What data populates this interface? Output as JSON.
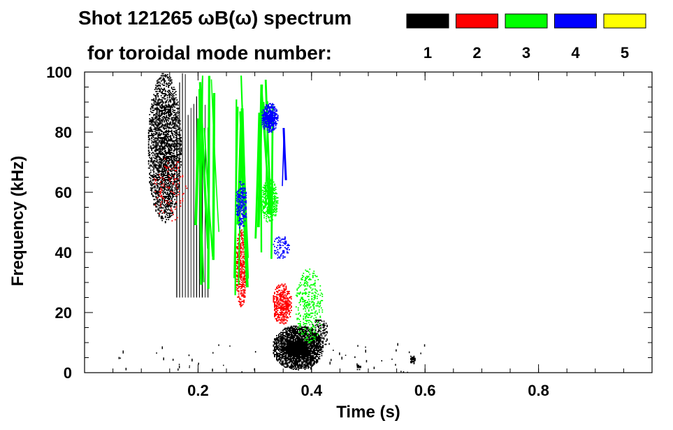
{
  "chart_data": {
    "type": "heatmap",
    "title_line1": "Shot 121265 ωB(ω) spectrum",
    "title_line2": "for toroidal mode number:",
    "xlabel": "Time (s)",
    "ylabel": "Frequency (kHz)",
    "xlim": [
      0.0,
      1.0
    ],
    "ylim": [
      0,
      100
    ],
    "x_ticks": [
      0.2,
      0.4,
      0.6,
      0.8
    ],
    "x_tick_labels": [
      "0.2",
      "0.4",
      "0.6",
      "0.8"
    ],
    "y_ticks": [
      0,
      20,
      40,
      60,
      80,
      100
    ],
    "y_tick_labels": [
      "0",
      "20",
      "40",
      "60",
      "80",
      "100"
    ],
    "legend": [
      {
        "mode": "1",
        "color": "#000000"
      },
      {
        "mode": "2",
        "color": "#ff0000"
      },
      {
        "mode": "3",
        "color": "#00ff00"
      },
      {
        "mode": "4",
        "color": "#0000ff"
      },
      {
        "mode": "5",
        "color": "#ffff00"
      }
    ],
    "features": [
      {
        "mode": "1",
        "kind": "blob",
        "t": [
          0.11,
          0.17
        ],
        "f": [
          50,
          100
        ],
        "density": 0.55
      },
      {
        "mode": "1",
        "kind": "blob",
        "t": [
          0.33,
          0.42
        ],
        "f": [
          1,
          16
        ],
        "density": 0.9
      },
      {
        "mode": "1",
        "kind": "blob",
        "t": [
          0.395,
          0.43
        ],
        "f": [
          8,
          18
        ],
        "density": 0.4
      },
      {
        "mode": "1",
        "kind": "lines",
        "t": [
          0.16,
          0.22
        ],
        "f": [
          25,
          100
        ],
        "count": 12
      },
      {
        "mode": "1",
        "kind": "scatter",
        "t": [
          0.05,
          0.6
        ],
        "f": [
          0,
          10
        ],
        "count": 60
      },
      {
        "mode": "1",
        "kind": "blob",
        "t": [
          0.478,
          0.486
        ],
        "f": [
          1,
          3
        ],
        "density": 0.8
      },
      {
        "mode": "1",
        "kind": "blob",
        "t": [
          0.572,
          0.582
        ],
        "f": [
          3,
          6
        ],
        "density": 0.8
      },
      {
        "mode": "2",
        "kind": "blob",
        "t": [
          0.265,
          0.285
        ],
        "f": [
          22,
          48
        ],
        "density": 0.6
      },
      {
        "mode": "2",
        "kind": "blob",
        "t": [
          0.33,
          0.365
        ],
        "f": [
          16,
          30
        ],
        "density": 0.6
      },
      {
        "mode": "2",
        "kind": "blob",
        "t": [
          0.12,
          0.18
        ],
        "f": [
          50,
          72
        ],
        "density": 0.08
      },
      {
        "mode": "3",
        "kind": "streaks",
        "t": [
          0.2,
          0.28
        ],
        "f": [
          25,
          100
        ],
        "count": 16
      },
      {
        "mode": "3",
        "kind": "streaks",
        "t": [
          0.305,
          0.34
        ],
        "f": [
          35,
          100
        ],
        "count": 8
      },
      {
        "mode": "3",
        "kind": "blob",
        "t": [
          0.37,
          0.42
        ],
        "f": [
          10,
          35
        ],
        "density": 0.25
      },
      {
        "mode": "3",
        "kind": "blob",
        "t": [
          0.31,
          0.34
        ],
        "f": [
          50,
          65
        ],
        "density": 0.6
      },
      {
        "mode": "4",
        "kind": "blob",
        "t": [
          0.31,
          0.34
        ],
        "f": [
          80,
          90
        ],
        "density": 0.85
      },
      {
        "mode": "4",
        "kind": "blob",
        "t": [
          0.265,
          0.285
        ],
        "f": [
          48,
          64
        ],
        "density": 0.5
      },
      {
        "mode": "4",
        "kind": "blob",
        "t": [
          0.33,
          0.36
        ],
        "f": [
          38,
          46
        ],
        "density": 0.3
      },
      {
        "mode": "4",
        "kind": "streaks",
        "t": [
          0.33,
          0.36
        ],
        "f": [
          62,
          82
        ],
        "count": 2
      }
    ]
  }
}
